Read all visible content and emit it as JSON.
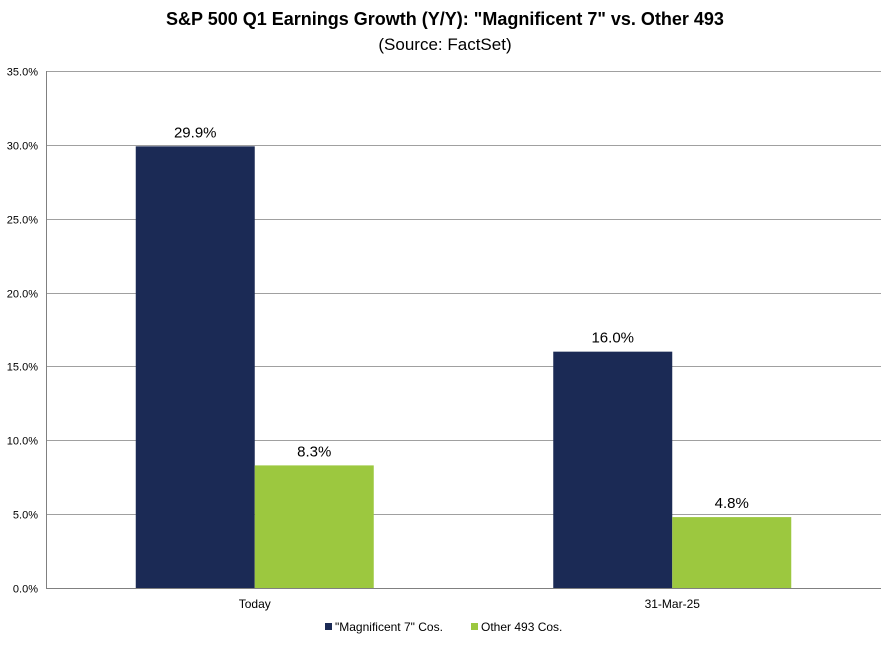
{
  "chart_data": {
    "type": "bar",
    "title": "S&P 500 Q1 Earnings Growth (Y/Y): \"Magnificent 7\" vs. Other 493",
    "subtitle": "(Source: FactSet)",
    "categories": [
      "Today",
      "31-Mar-25"
    ],
    "series": [
      {
        "name": "\"Magnificent 7\" Cos.",
        "color": "#1b2a55",
        "values": [
          29.9,
          16.0
        ],
        "labels": [
          "29.9%",
          "16.0%"
        ]
      },
      {
        "name": "Other 493 Cos.",
        "color": "#9cc83f",
        "values": [
          8.3,
          4.8
        ],
        "labels": [
          "8.3%",
          "4.8%"
        ]
      }
    ],
    "ylim": [
      0,
      35
    ],
    "yticks": [
      0,
      5,
      10,
      15,
      20,
      25,
      30,
      35
    ],
    "ytick_labels": [
      "0.0%",
      "5.0%",
      "10.0%",
      "15.0%",
      "20.0%",
      "25.0%",
      "30.0%",
      "35.0%"
    ],
    "xlabel": "",
    "ylabel": "",
    "grid": true,
    "legend_position": "bottom-center"
  }
}
